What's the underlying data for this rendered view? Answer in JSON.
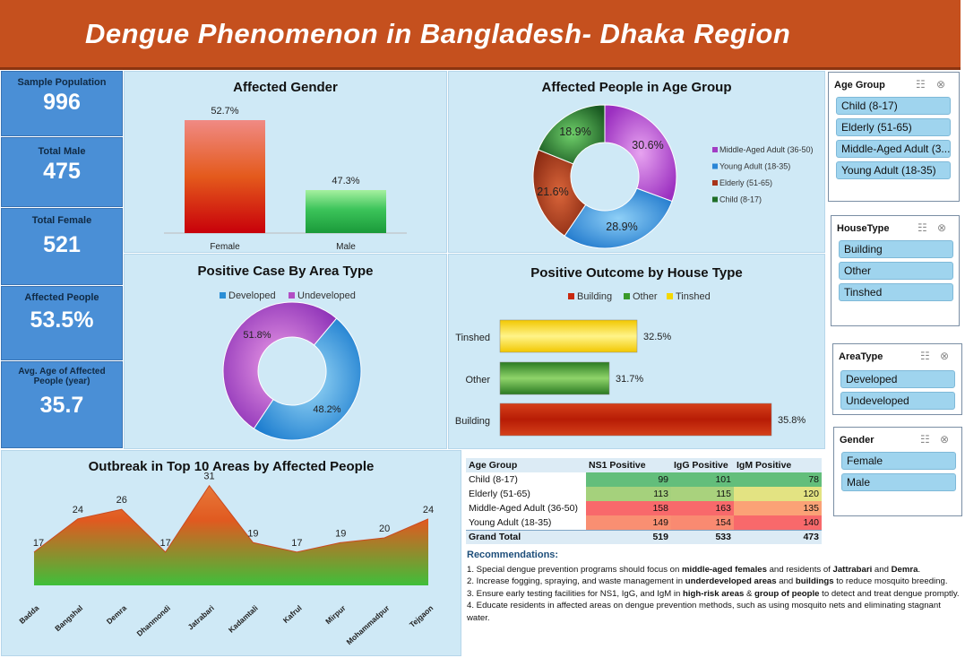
{
  "title": "Dengue Phenomenon in Bangladesh- Dhaka Region",
  "kpis": [
    {
      "label": "Sample Population",
      "value": "996"
    },
    {
      "label": "Total Male",
      "value": "475"
    },
    {
      "label": "Total Female",
      "value": "521"
    },
    {
      "label": "Affected People",
      "value": "53.5%"
    },
    {
      "label": "Avg. Age of Affected People (year)",
      "value": "35.7"
    }
  ],
  "gender_chart": {
    "title": "Affected Gender",
    "chart_data": {
      "type": "bar",
      "categories": [
        "Female",
        "Male"
      ],
      "values": [
        52.7,
        47.3
      ],
      "labels": [
        "52.7%",
        "47.3%"
      ],
      "colors": [
        "#d42a10",
        "#2fb84f"
      ]
    }
  },
  "age_chart": {
    "title": "Affected People in Age Group",
    "chart_data": {
      "type": "pie",
      "categories": [
        "Middle-Aged Adult (36-50)",
        "Young Adult (18-35)",
        "Elderly (51-65)",
        "Child (8-17)"
      ],
      "values": [
        30.6,
        28.9,
        21.6,
        18.9
      ],
      "labels": [
        "30.6%",
        "28.9%",
        "21.6%",
        "18.9%"
      ],
      "colors": [
        "#a23dc4",
        "#2a86d6",
        "#a8341a",
        "#1f6e28"
      ]
    }
  },
  "area_type_chart": {
    "title": "Positive Case By Area Type",
    "chart_data": {
      "type": "pie",
      "categories": [
        "Developed",
        "Undeveloped"
      ],
      "values": [
        48.2,
        51.8
      ],
      "labels": [
        "48.2%",
        "51.8%"
      ],
      "colors": [
        "#2b8fd6",
        "#b24ec4"
      ]
    }
  },
  "house_chart": {
    "title": "Positive Outcome by House Type",
    "chart_data": {
      "type": "bar",
      "orientation": "horizontal",
      "categories": [
        "Tinshed",
        "Other",
        "Building"
      ],
      "values": [
        32.5,
        31.7,
        35.8
      ],
      "labels": [
        "32.5%",
        "31.7%",
        "35.8%"
      ],
      "legend": [
        "Building",
        "Other",
        "Tinshed"
      ],
      "colors": {
        "Building": "#c8280e",
        "Other": "#3a9a2a",
        "Tinshed": "#f4d800"
      }
    }
  },
  "outbreak_chart": {
    "title": "Outbreak in Top 10 Areas by Affected People",
    "chart_data": {
      "type": "area",
      "categories": [
        "Badda",
        "Bangshal",
        "Demra",
        "Dhanmondi",
        "Jatrabari",
        "Kadamtali",
        "Kafrul",
        "Mirpur",
        "Mohammadpur",
        "Tejgaon"
      ],
      "values": [
        17,
        24,
        26,
        17,
        31,
        19,
        17,
        19,
        20,
        24
      ]
    }
  },
  "slicers": {
    "age_group": {
      "title": "Age Group",
      "items": [
        "Child (8-17)",
        "Elderly (51-65)",
        "Middle-Aged Adult (3...",
        "Young Adult (18-35)"
      ]
    },
    "house_type": {
      "title": "HouseType",
      "items": [
        "Building",
        "Other",
        "Tinshed"
      ]
    },
    "area_type": {
      "title": "AreaType",
      "items": [
        "Developed",
        "Undeveloped"
      ]
    },
    "gender": {
      "title": "Gender",
      "items": [
        "Female",
        "Male"
      ]
    },
    "icons": {
      "multiselect": "☷",
      "clear": "⊗"
    }
  },
  "pivot": {
    "headers": [
      "Age Group",
      "NS1 Positive",
      "IgG Positive",
      "IgM Positive"
    ],
    "rows": [
      {
        "label": "Child (8-17)",
        "values": [
          "99",
          "101",
          "78"
        ],
        "colors": [
          "#63be7b",
          "#63be7b",
          "#63be7b"
        ]
      },
      {
        "label": "Elderly (51-65)",
        "values": [
          "113",
          "115",
          "120"
        ],
        "colors": [
          "#a5d17c",
          "#a9d27d",
          "#e3e382"
        ]
      },
      {
        "label": "Middle-Aged Adult (36-50)",
        "values": [
          "158",
          "163",
          "135"
        ],
        "colors": [
          "#f8696b",
          "#f8696b",
          "#fba276"
        ]
      },
      {
        "label": "Young Adult (18-35)",
        "values": [
          "149",
          "154",
          "140"
        ],
        "colors": [
          "#f98f72",
          "#f98a71",
          "#f8696b"
        ]
      }
    ],
    "total": {
      "label": "Grand Total",
      "values": [
        "519",
        "533",
        "473"
      ]
    }
  },
  "recommendations": {
    "title": "Recommendations:",
    "items": [
      [
        "1. Special dengue prevention programs should focus on ",
        "middle-aged females",
        " and residents of ",
        "Jattrabari",
        " and ",
        "Demra",
        "."
      ],
      [
        "2. Increase fogging, spraying, and waste management in ",
        "underdeveloped areas",
        " and ",
        "buildings",
        " to reduce mosquito breeding."
      ],
      [
        "3. Ensure early testing facilities for NS1, IgG, and IgM in ",
        "high-risk areas",
        " & ",
        "group of people",
        " to detect and treat dengue promptly."
      ],
      [
        "4. Educate residents in affected areas on dengue prevention methods, such as using mosquito nets and eliminating stagnant water."
      ]
    ]
  }
}
